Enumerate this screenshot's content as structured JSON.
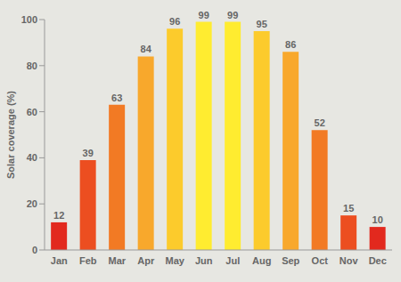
{
  "chart_data": {
    "type": "bar",
    "y_label": "Solar coverage (%)",
    "categories": [
      "Jan",
      "Feb",
      "Mar",
      "Apr",
      "May",
      "Jun",
      "Jul",
      "Aug",
      "Sep",
      "Oct",
      "Nov",
      "Dec"
    ],
    "values": [
      12,
      39,
      63,
      84,
      96,
      99,
      99,
      95,
      86,
      52,
      15,
      10
    ],
    "colors": [
      "#e2291e",
      "#ec4e20",
      "#f27a24",
      "#f8a82c",
      "#fccb2c",
      "#ffec30",
      "#ffec30",
      "#fccb2c",
      "#f8a82c",
      "#f27a24",
      "#ec4e20",
      "#e2291e"
    ],
    "ylim": [
      0,
      100
    ],
    "yticks": [
      0,
      20,
      40,
      60,
      80,
      100
    ],
    "grid": false,
    "data_labels": true
  }
}
